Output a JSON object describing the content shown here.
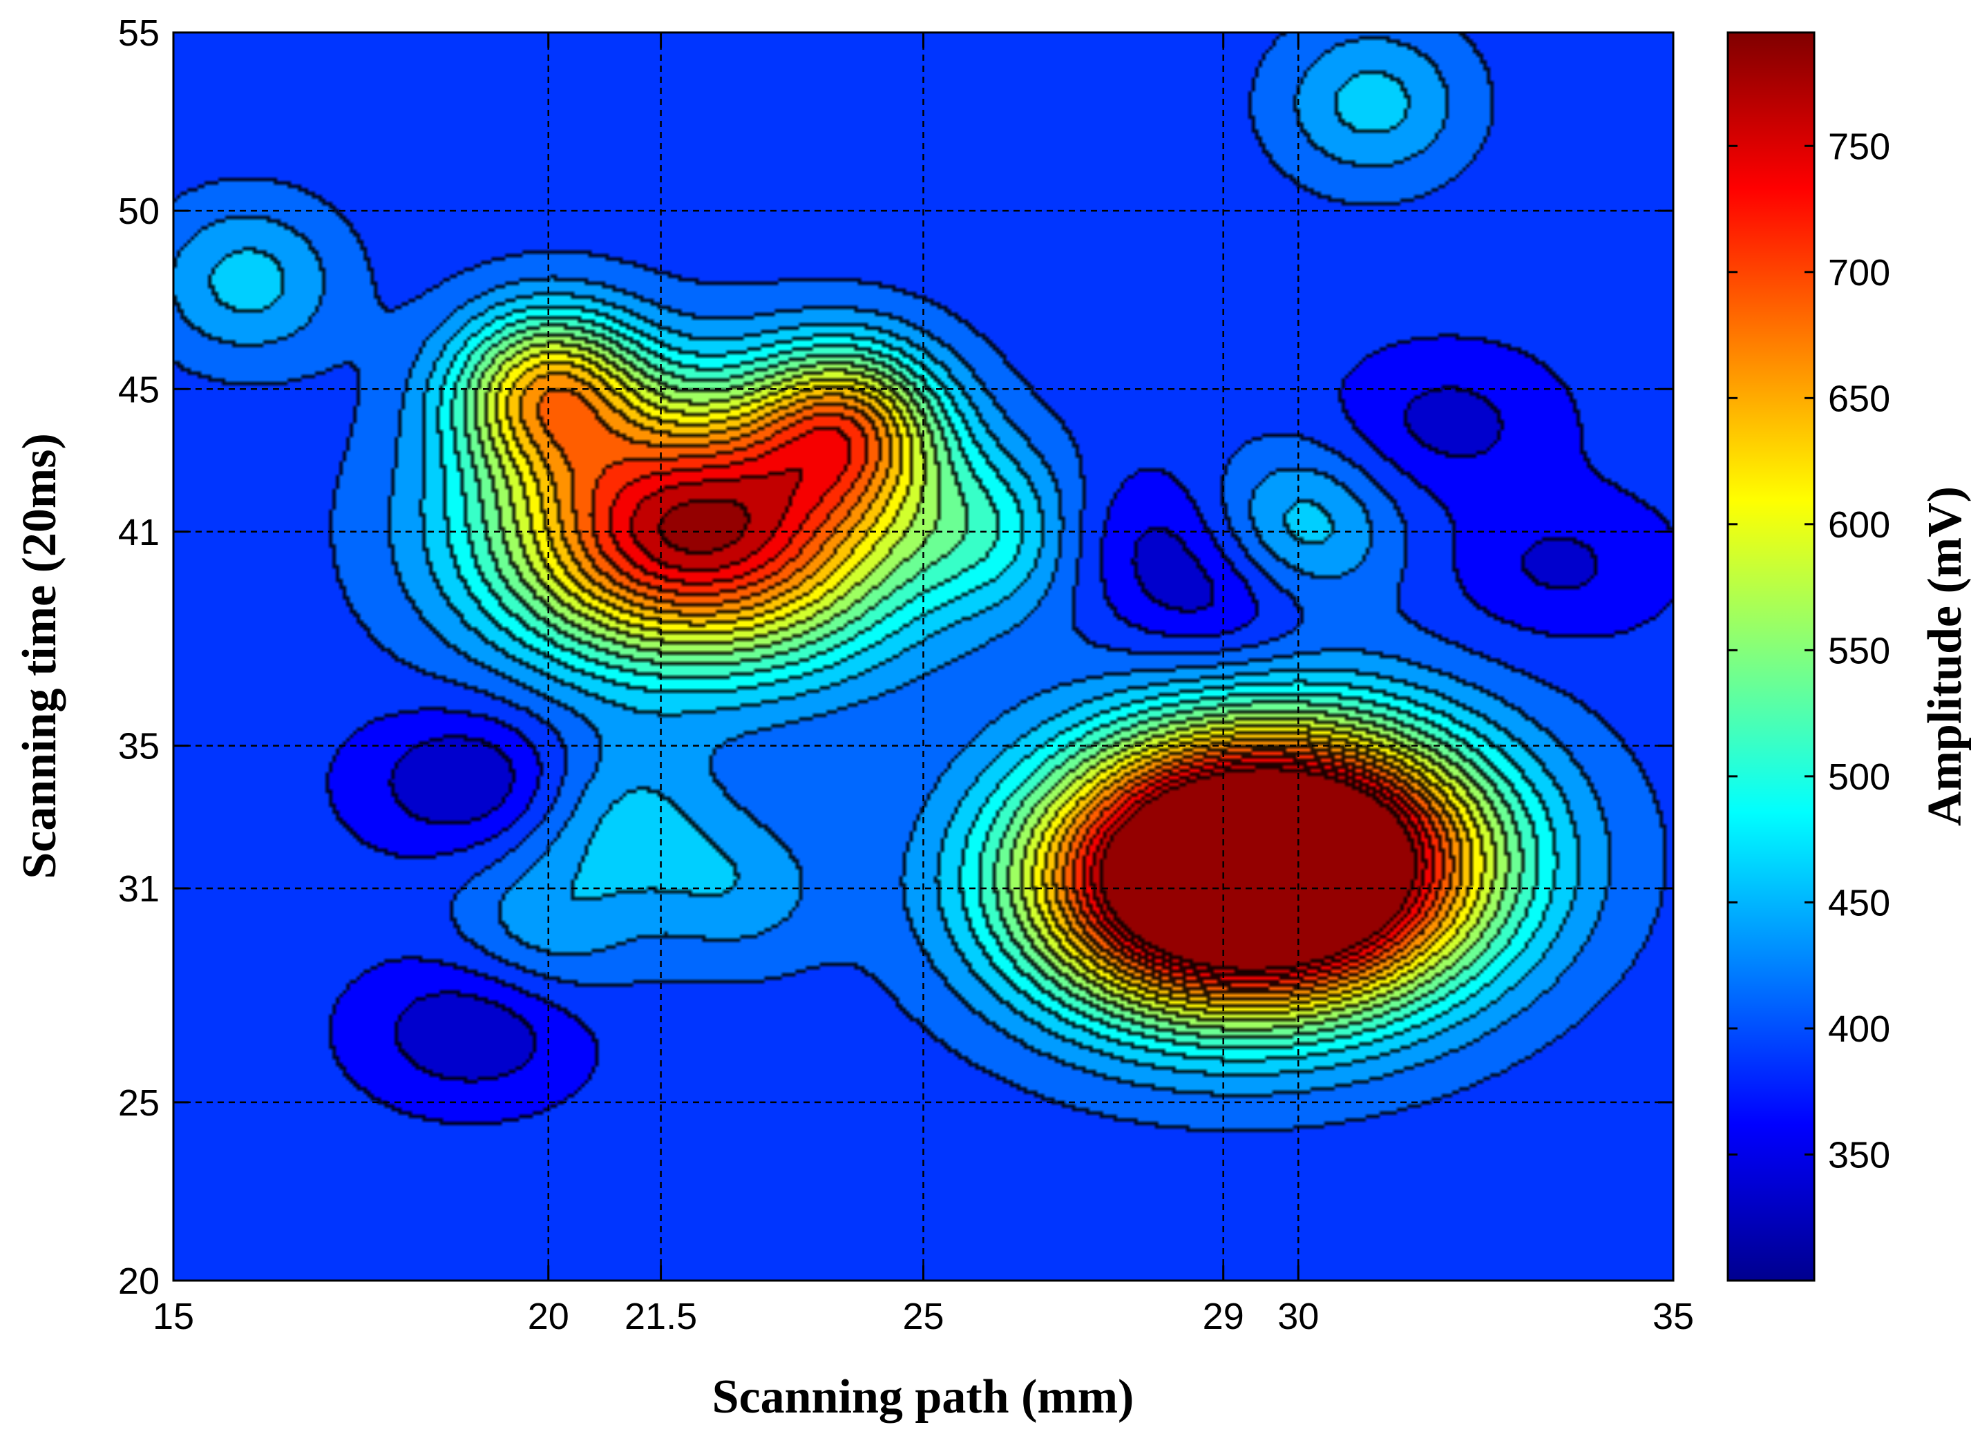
{
  "chart_data": {
    "type": "heatmap",
    "subtype": "filled-contour",
    "title": "",
    "xlabel": "Scanning path (mm)",
    "ylabel": "Scanning time (20ms)",
    "colorbar_label": "Amplitude (mV)",
    "colormap": "jet",
    "xlim": [
      15,
      35
    ],
    "ylim": [
      20,
      55
    ],
    "clim": [
      300,
      795
    ],
    "x_ticks": [
      15,
      20,
      21.5,
      25,
      29,
      30,
      35
    ],
    "x_tick_labels": [
      "15",
      "20",
      "21.5",
      "25",
      "29",
      "30",
      "35"
    ],
    "y_ticks": [
      20,
      25,
      31,
      35,
      41,
      45,
      50,
      55
    ],
    "y_tick_labels": [
      "20",
      "25",
      "31",
      "35",
      "41",
      "45",
      "50",
      "55"
    ],
    "colorbar_ticks": [
      350,
      400,
      450,
      500,
      550,
      600,
      650,
      700,
      750
    ],
    "colorbar_tick_labels": [
      "350",
      "400",
      "450",
      "500",
      "550",
      "600",
      "650",
      "700",
      "750"
    ],
    "grid": "dashed at tick positions",
    "contour_levels": [
      300,
      325,
      350,
      375,
      400,
      425,
      450,
      475,
      500,
      525,
      550,
      575,
      600,
      625,
      650,
      675,
      700,
      725,
      750,
      775
    ],
    "features": [
      {
        "x": 22,
        "y": 41,
        "amplitude": 785,
        "kind": "peak"
      },
      {
        "x": 20,
        "y": 45,
        "amplitude": 600,
        "kind": "peak"
      },
      {
        "x": 24,
        "y": 44,
        "amplitude": 590,
        "kind": "peak"
      },
      {
        "x": 29,
        "y": 31,
        "amplitude": 755,
        "kind": "peak"
      },
      {
        "x": 30,
        "y": 32,
        "amplitude": 740,
        "kind": "peak"
      },
      {
        "x": 30,
        "y": 41,
        "amplitude": 470,
        "kind": "peak"
      },
      {
        "x": 31,
        "y": 53,
        "amplitude": 460,
        "kind": "peak"
      },
      {
        "x": 16,
        "y": 48,
        "amplitude": 460,
        "kind": "peak"
      },
      {
        "x": 21,
        "y": 33,
        "amplitude": 450,
        "kind": "peak"
      },
      {
        "x": 22.5,
        "y": 31,
        "amplitude": 440,
        "kind": "peak"
      },
      {
        "x": 20,
        "y": 30,
        "amplitude": 440,
        "kind": "peak"
      },
      {
        "x": 26,
        "y": 41,
        "amplitude": 460,
        "kind": "peak"
      },
      {
        "x": 19,
        "y": 34,
        "amplitude": 320,
        "kind": "minimum"
      },
      {
        "x": 19,
        "y": 27,
        "amplitude": 325,
        "kind": "minimum"
      },
      {
        "x": 28,
        "y": 41,
        "amplitude": 345,
        "kind": "minimum"
      },
      {
        "x": 29,
        "y": 39,
        "amplitude": 330,
        "kind": "minimum"
      },
      {
        "x": 32,
        "y": 44,
        "amplitude": 340,
        "kind": "minimum"
      },
      {
        "x": 33.5,
        "y": 40,
        "amplitude": 345,
        "kind": "minimum"
      }
    ]
  }
}
